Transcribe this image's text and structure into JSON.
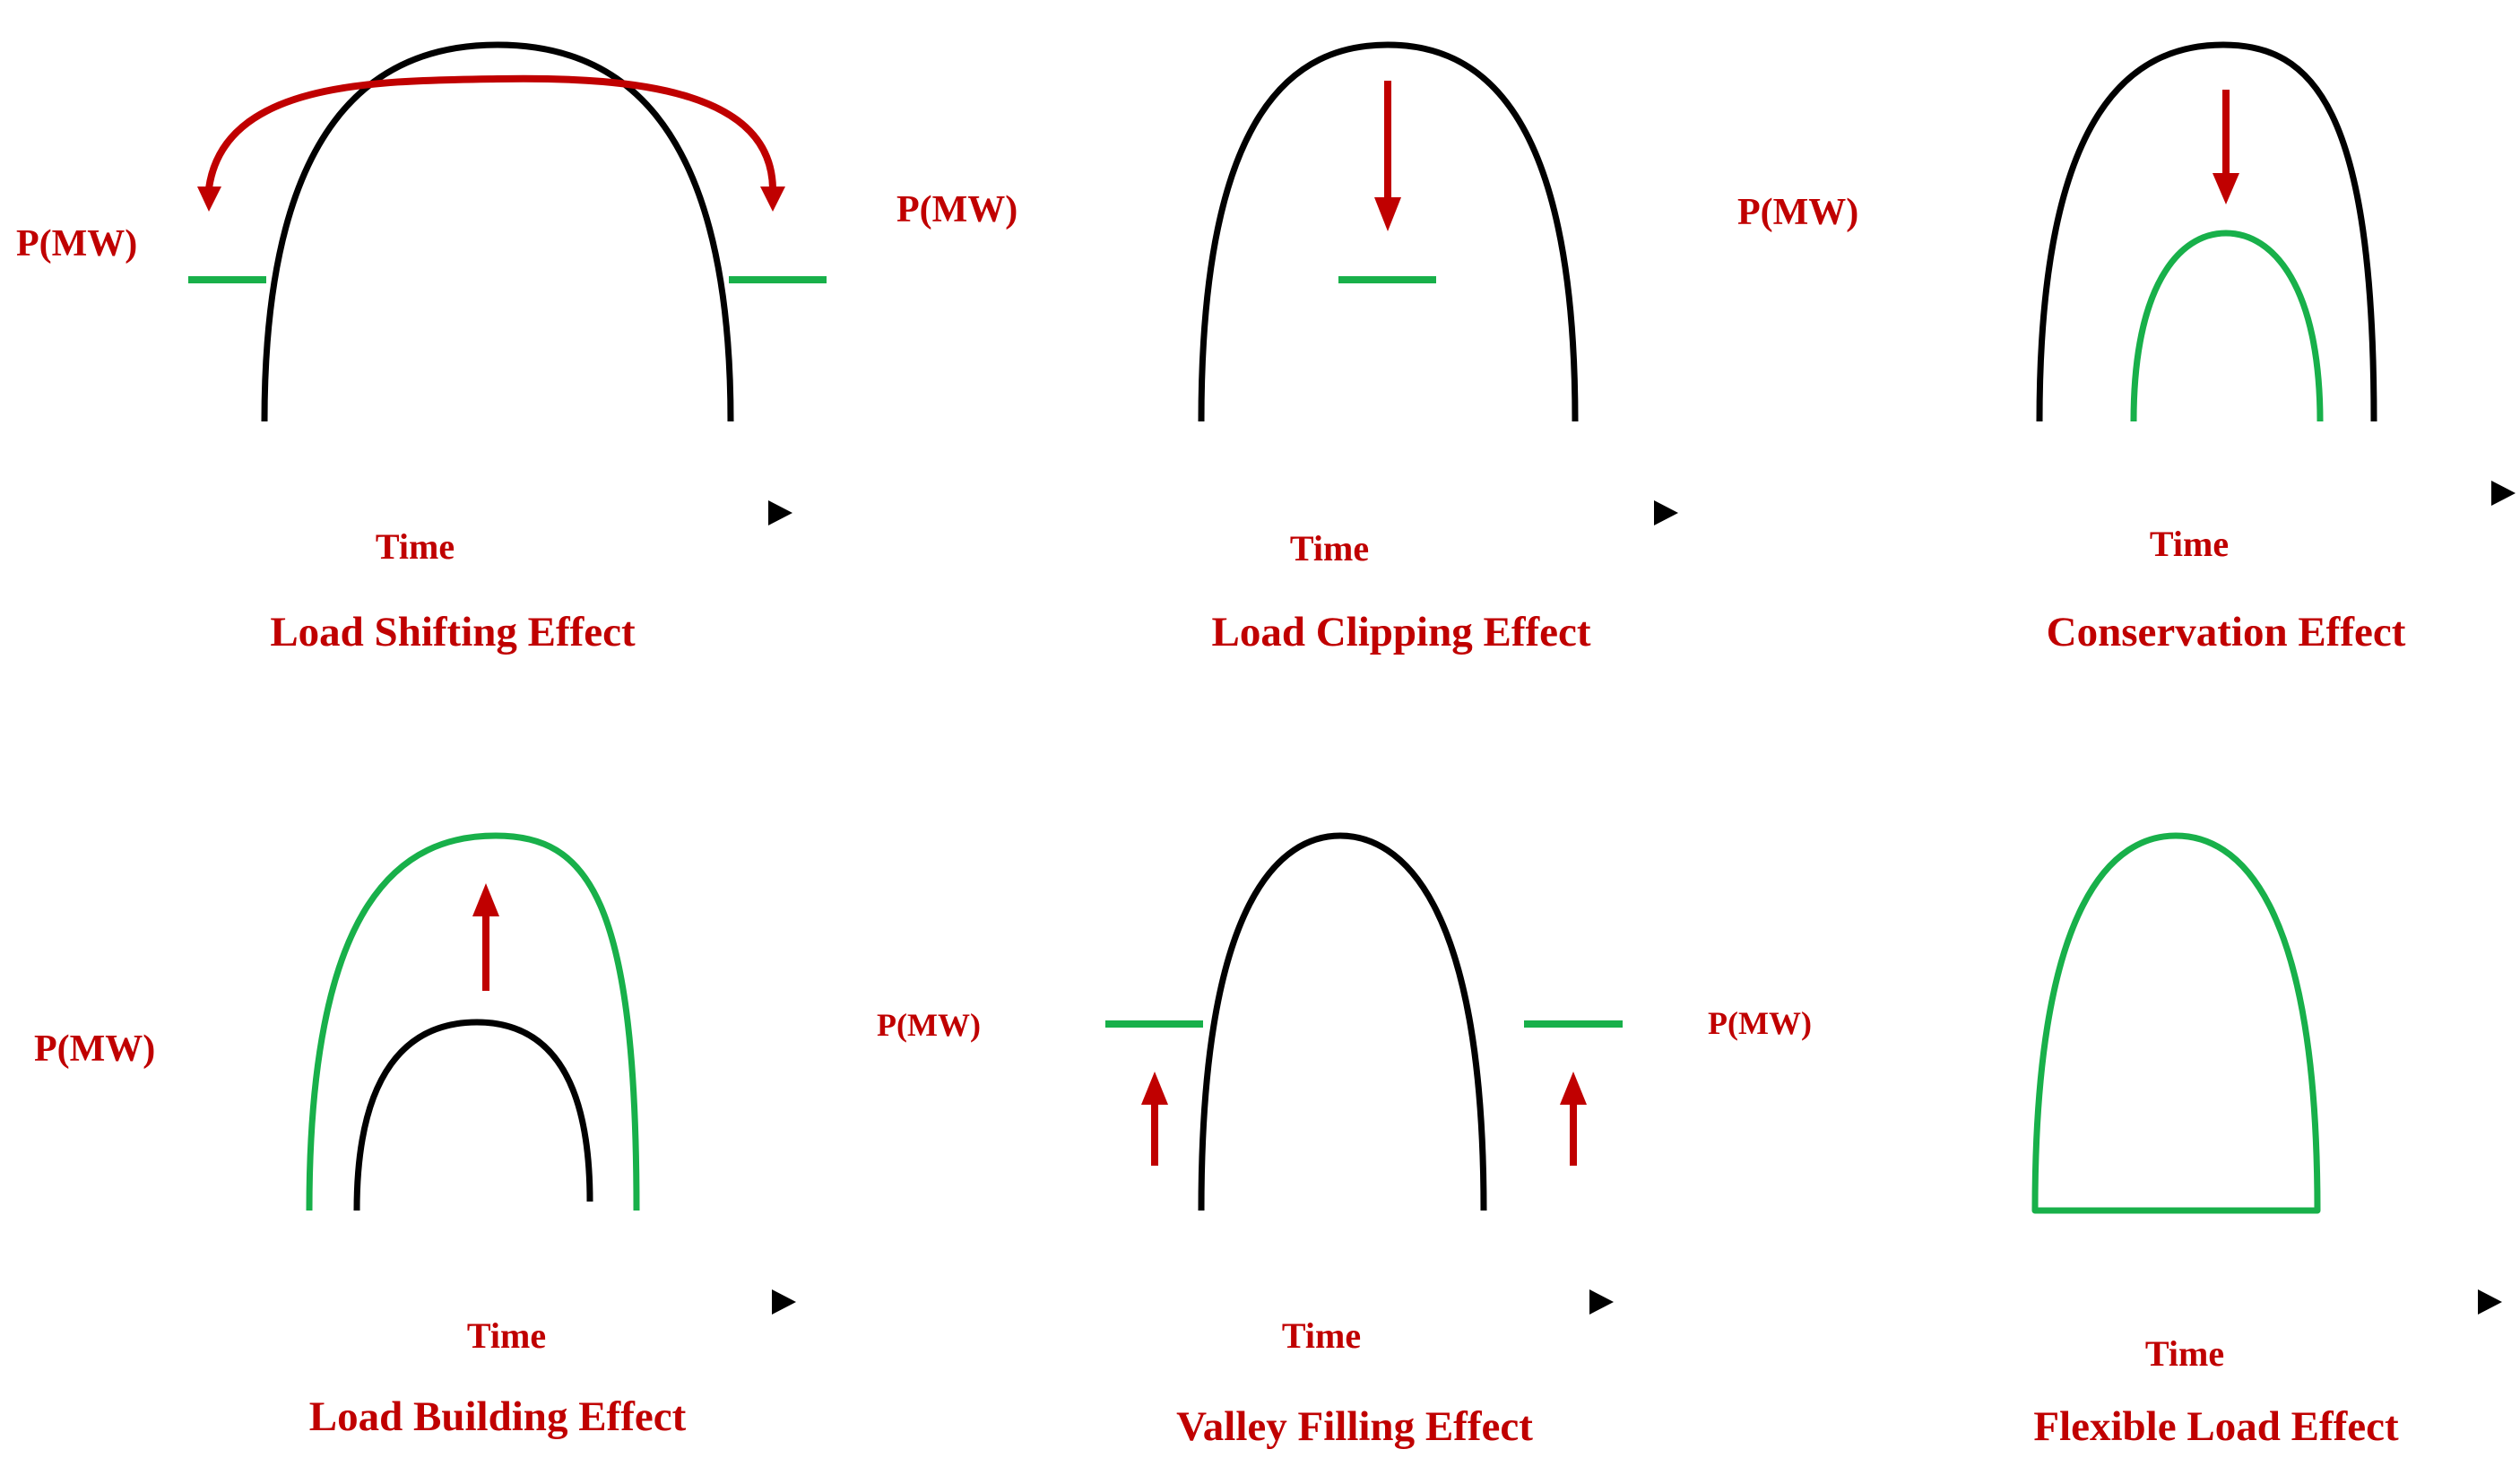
{
  "colors": {
    "axis": "#000000",
    "original_curve": "#000000",
    "modified_curve": "#18b04a",
    "arrow": "#c00000",
    "text": "#c00000",
    "background": "#ffffff"
  },
  "panels": [
    {
      "id": "load-shifting",
      "title": "Load Shifting Effect",
      "y_label": "P(MW)",
      "x_label": "Time"
    },
    {
      "id": "load-clipping",
      "title": "Load Clipping Effect",
      "y_label": "P(MW)",
      "x_label": "Time"
    },
    {
      "id": "conservation",
      "title": "Conservation Effect",
      "y_label": "P(MW)",
      "x_label": "Time"
    },
    {
      "id": "load-building",
      "title": "Load Building Effect",
      "y_label": "P(MW)",
      "x_label": "Time"
    },
    {
      "id": "valley-filling",
      "title": "Valley Filling Effect",
      "y_label": "P(MW)",
      "x_label": "Time"
    },
    {
      "id": "flexible-load",
      "title": "Flexible Load Effect",
      "y_label": "P(MW)",
      "x_label": "Time"
    }
  ]
}
